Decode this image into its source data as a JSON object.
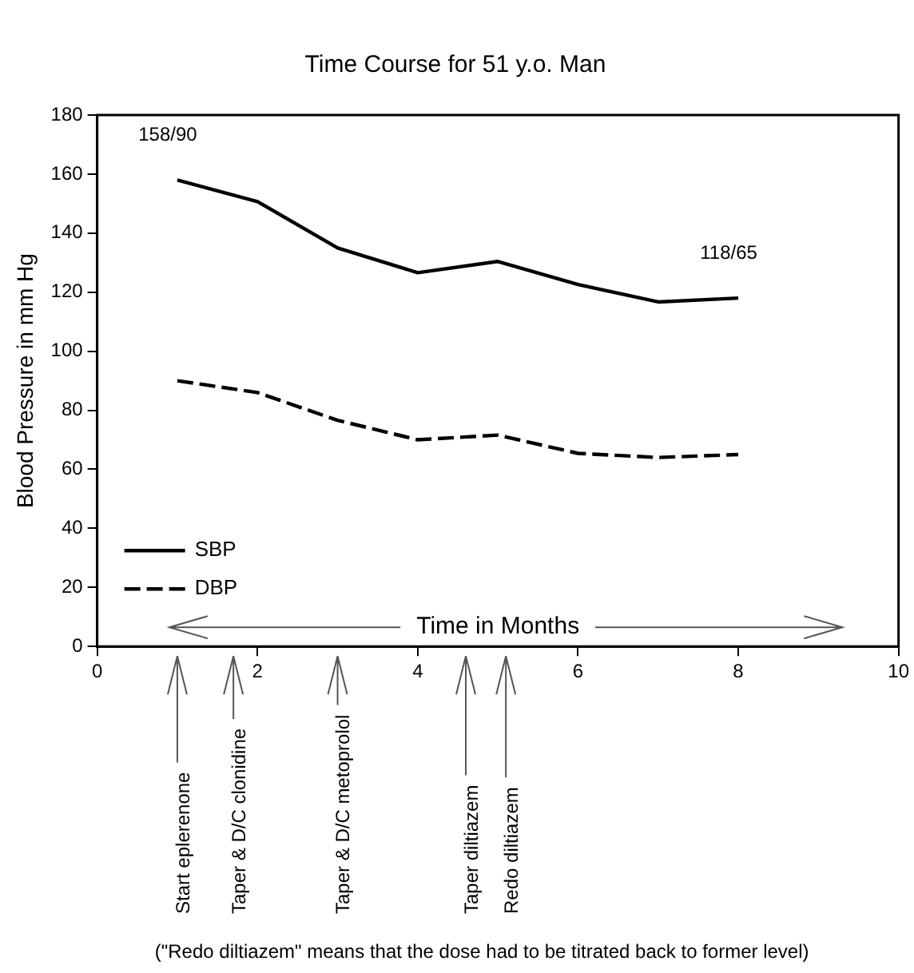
{
  "chart_data": {
    "type": "line",
    "title": "Time Course for 51 y.o. Man",
    "xlabel": "Time in Months",
    "ylabel": "Blood Pressure in mm Hg",
    "x": [
      1,
      2,
      3,
      4,
      5,
      6,
      7,
      8
    ],
    "series": [
      {
        "name": "SBP",
        "color": "#000000",
        "line_style": "solid",
        "values": [
          158,
          150.7,
          135,
          126.6,
          130.4,
          122.6,
          116.7,
          118
        ]
      },
      {
        "name": "DBP",
        "color": "#000000",
        "line_style": "dashed",
        "values": [
          90,
          86,
          76.6,
          70,
          71.6,
          65.4,
          64,
          65
        ]
      }
    ],
    "xlim": [
      0,
      10
    ],
    "xticks": [
      0,
      2,
      4,
      6,
      8,
      10
    ],
    "ylim": [
      0,
      180
    ],
    "yticks": [
      0,
      20,
      40,
      60,
      80,
      100,
      120,
      140,
      160,
      180
    ],
    "grid": false,
    "legend": "bottom left",
    "marker": "none",
    "annotations": [
      {
        "text": "158/90",
        "x": 1,
        "y": 158
      },
      {
        "text": "118/65",
        "x": 8,
        "y": 118
      },
      "Start eplerenone",
      "Taper & D/C clonidine",
      "Taper & D/C metoprolol",
      "Taper diltiazem",
      "Redo diltiazem",
      "(\"Redo diltiazem\" means that the dose had to be titrated back to former level)"
    ]
  }
}
